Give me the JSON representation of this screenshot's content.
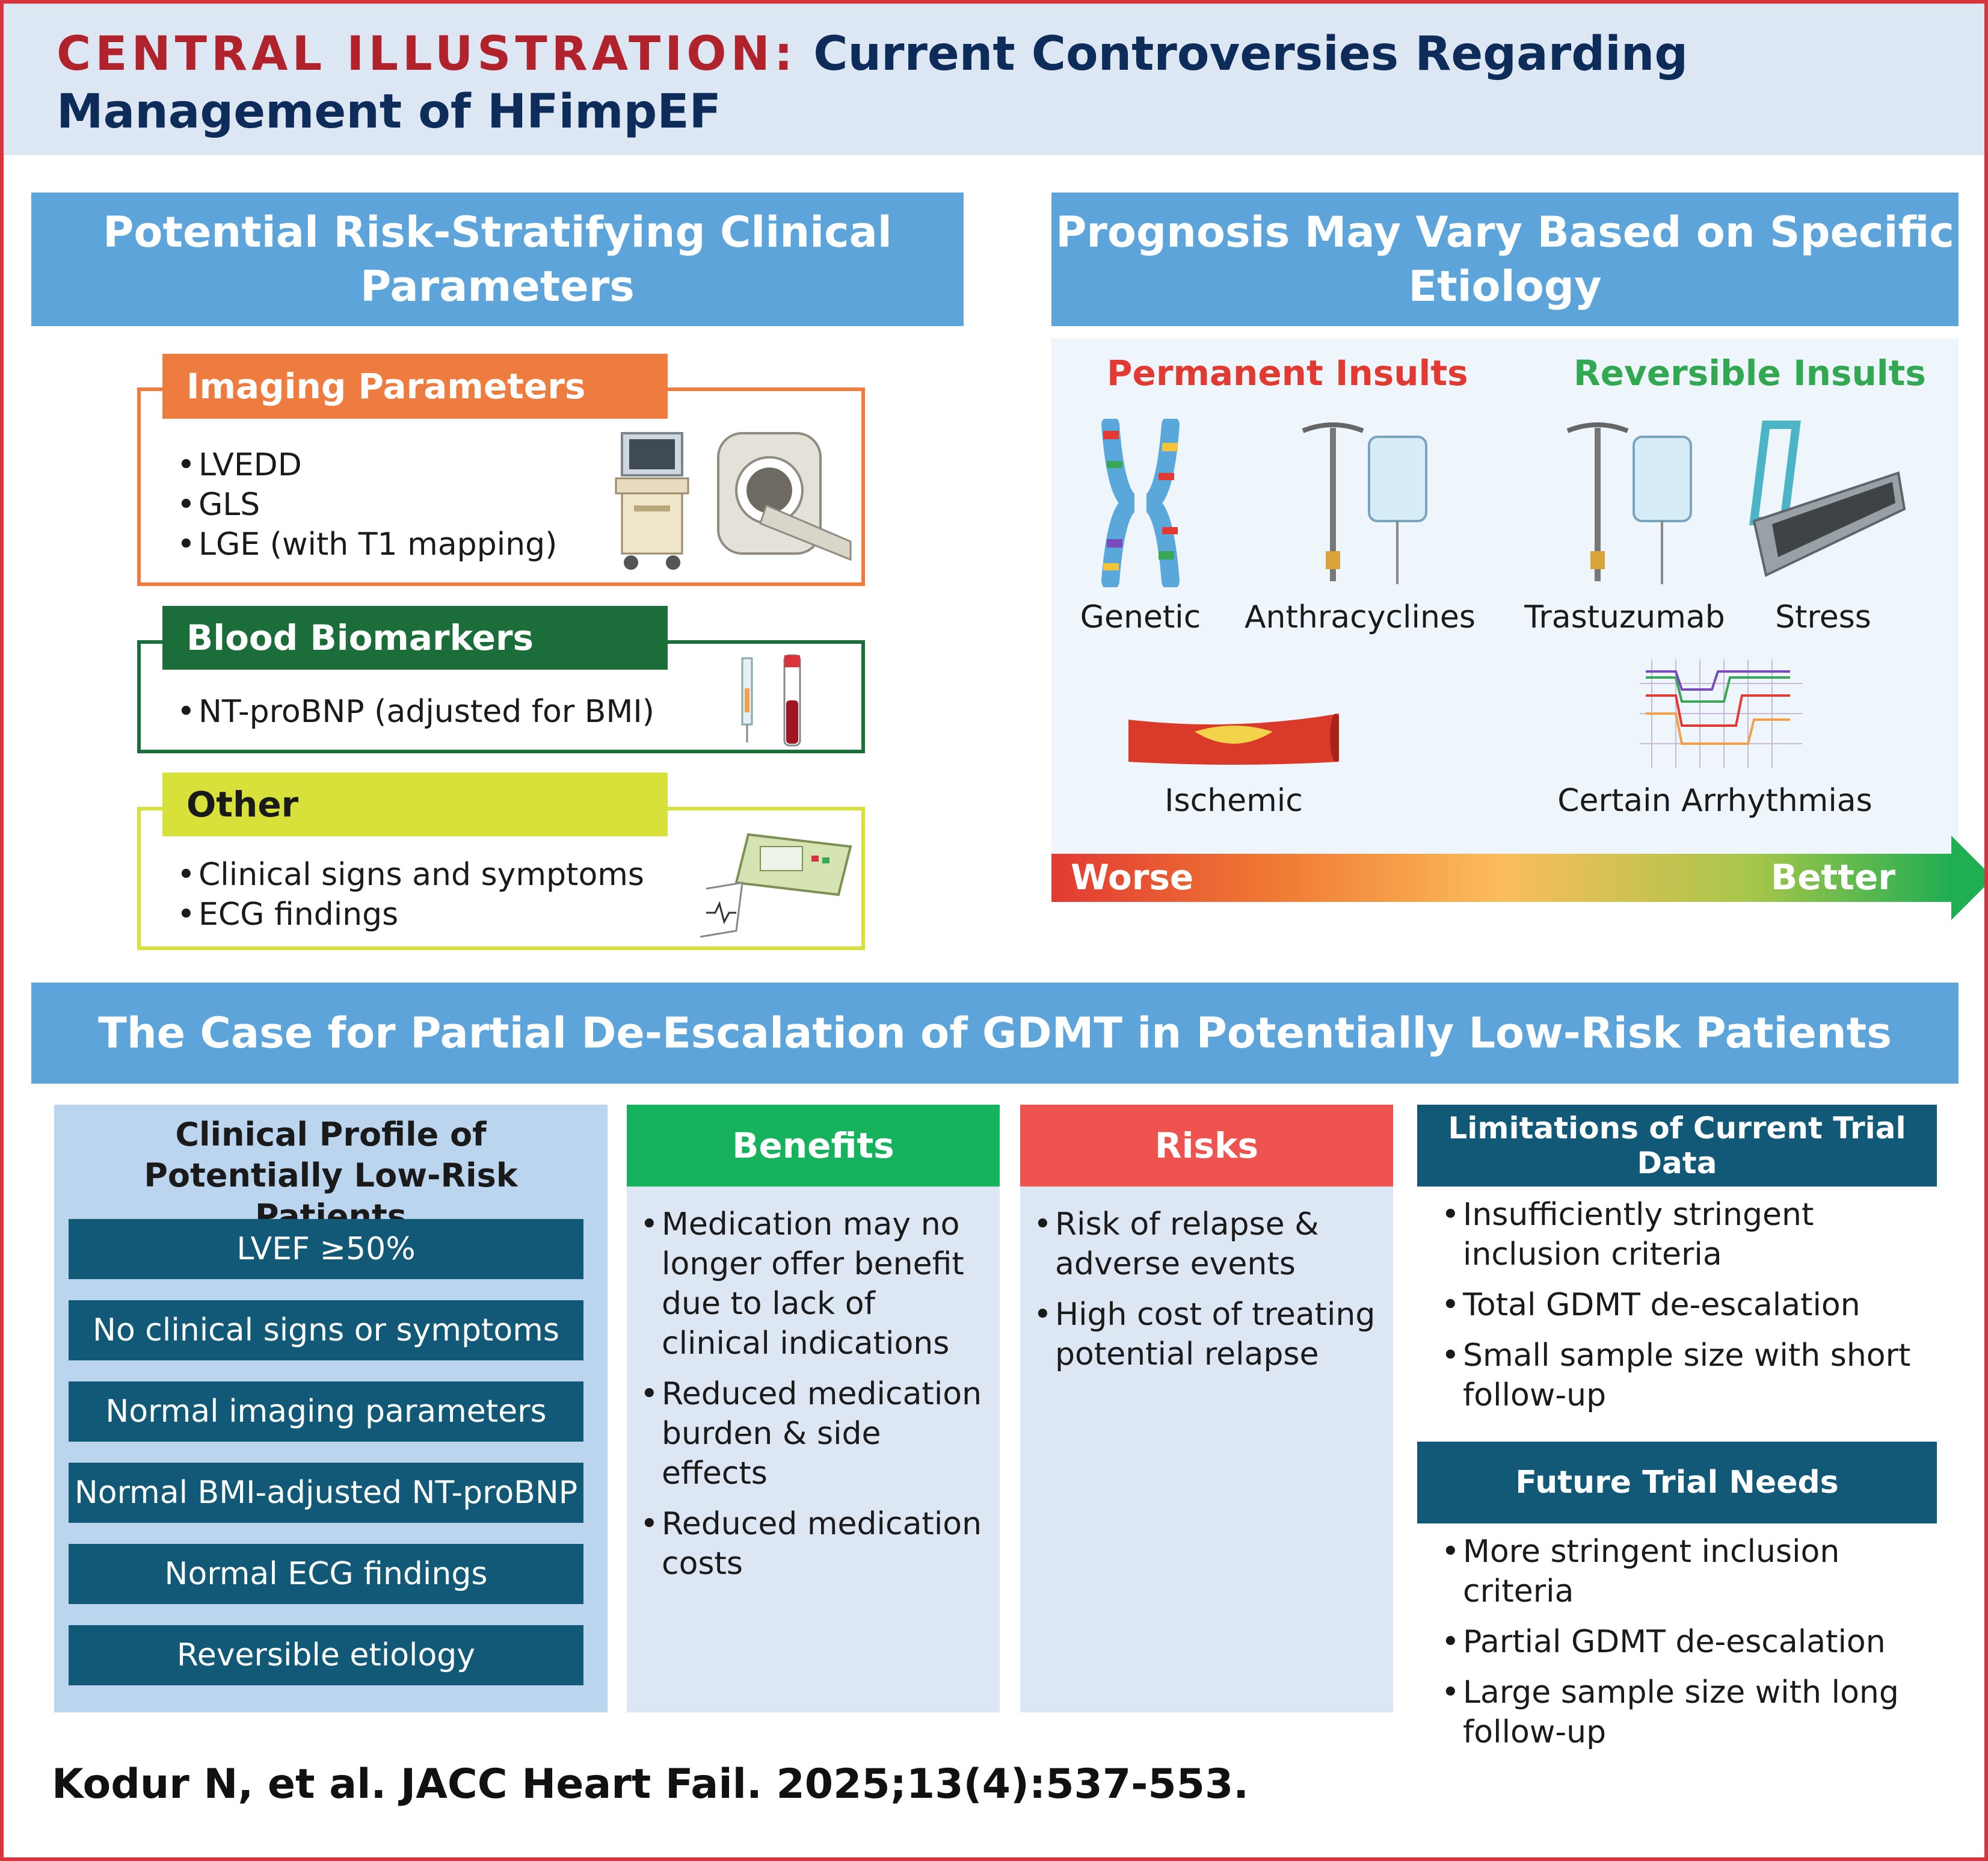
{
  "header": {
    "label": "CENTRAL ILLUSTRATION:",
    "title": "Current Controversies Regarding Management of HFimpEF"
  },
  "risk_panel": {
    "title": "Potential Risk-Stratifying Clinical Parameters",
    "imaging": {
      "title": "Imaging Parameters",
      "items": [
        "LVEDD",
        "GLS",
        "LGE (with T1 mapping)"
      ],
      "color": "#ee7b3f"
    },
    "blood": {
      "title": "Blood Biomarkers",
      "items": [
        "NT-proBNP (adjusted for BMI)"
      ],
      "color": "#1b6e3a"
    },
    "other": {
      "title": "Other",
      "items": [
        "Clinical signs and symptoms",
        "ECG findings"
      ],
      "color": "#d8e13a"
    }
  },
  "etiology_panel": {
    "title": "Prognosis May Vary Based on Specific Etiology",
    "permanent_title": "Permanent Insults",
    "reversible_title": "Reversible Insults",
    "labels": {
      "genetic": "Genetic",
      "anthracyclines": "Anthracyclines",
      "trastuzumab": "Trastuzumab",
      "stress": "Stress",
      "ischemic": "Ischemic",
      "arrhythmias": "Certain Arrhythmias"
    },
    "scale": {
      "worse": "Worse",
      "better": "Better"
    },
    "colors": {
      "permanent": "#e03a32",
      "reversible": "#33a852"
    }
  },
  "deescalation": {
    "title": "The Case for Partial De-Escalation of GDMT in Potentially Low-Risk Patients",
    "profile": {
      "title": "Clinical Profile of Potentially Low-Risk Patients",
      "items": [
        "LVEF ≥50%",
        "No clinical signs or symptoms",
        "Normal imaging parameters",
        "Normal BMI-adjusted NT-proBNP",
        "Normal ECG findings",
        "Reversible etiology"
      ]
    },
    "benefits": {
      "title": "Benefits",
      "items": [
        "Medication may no longer offer benefit due to lack of clinical indications",
        "Reduced medication burden & side effects",
        "Reduced medication costs"
      ],
      "color": "#17b25d"
    },
    "risks": {
      "title": "Risks",
      "items": [
        "Risk of relapse & adverse events",
        "High cost of treating potential relapse"
      ],
      "color": "#ef5350"
    },
    "limitations": {
      "title": "Limitations of Current Trial Data",
      "items": [
        "Insufficiently stringent inclusion criteria",
        "Total GDMT de-escalation",
        "Small sample size with short follow-up"
      ]
    },
    "future": {
      "title": "Future Trial Needs",
      "items": [
        "More stringent inclusion criteria",
        "Partial GDMT de-escalation",
        "Large sample size with long follow-up"
      ]
    }
  },
  "citation": "Kodur N, et al. JACC Heart Fail. 2025;13(4):537-553."
}
